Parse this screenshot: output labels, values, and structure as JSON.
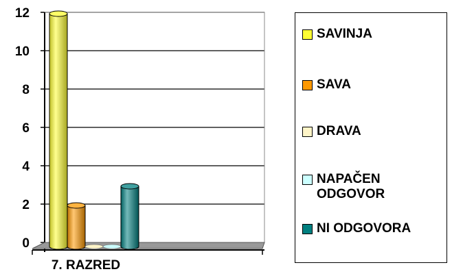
{
  "chart_data": {
    "type": "bar",
    "categories": [
      "7. RAZRED"
    ],
    "series": [
      {
        "name": "SAVINJA",
        "values": [
          12
        ],
        "color": "#FFFF33"
      },
      {
        "name": "SAVA",
        "values": [
          2
        ],
        "color": "#FF9900"
      },
      {
        "name": "DRAVA",
        "values": [
          0
        ],
        "color": "#FFF5C8"
      },
      {
        "name": "NAPAČEN\nODGOVOR",
        "values": [
          0
        ],
        "color": "#CCFFFF"
      },
      {
        "name": "NI ODGOVORA",
        "values": [
          3
        ],
        "color": "#008080"
      }
    ],
    "y_ticks": [
      "0",
      "2",
      "4",
      "6",
      "8",
      "10",
      "12"
    ],
    "ylim": [
      0,
      12
    ],
    "grid": true,
    "legend_position": "right",
    "style": "3d-cylinder"
  }
}
